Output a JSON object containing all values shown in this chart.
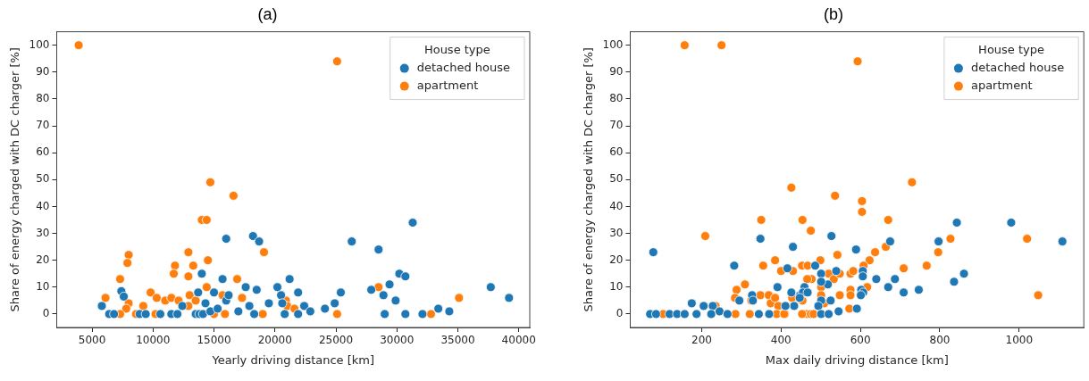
{
  "chart_data": [
    {
      "type": "scatter",
      "title": "(a)",
      "xlabel": "Yearly driving distance [km]",
      "ylabel": "Share of energy charged with DC charger [%]",
      "legend_title": "House type",
      "legend": "top right",
      "marker": "circle",
      "grid": false,
      "xlim": [
        2100,
        40900
      ],
      "ylim": [
        -5,
        105
      ],
      "xticks": [
        5000,
        10000,
        15000,
        20000,
        25000,
        30000,
        35000,
        40000
      ],
      "yticks": [
        0,
        10,
        20,
        30,
        40,
        50,
        60,
        70,
        80,
        90,
        100
      ],
      "series": [
        {
          "name": "detached house",
          "color": "#1f77b4",
          "x": [
            5800,
            6400,
            6800,
            7400,
            7600,
            8900,
            9400,
            10600,
            11500,
            12000,
            12400,
            13500,
            13800,
            14100,
            13700,
            14000,
            14300,
            14700,
            15000,
            15300,
            15700,
            16000,
            16200,
            16000,
            17000,
            17600,
            17900,
            18300,
            18200,
            18700,
            18500,
            19500,
            20200,
            20500,
            20600,
            20800,
            21200,
            21900,
            21900,
            22400,
            22900,
            24100,
            24900,
            25400,
            26300,
            27900,
            28500,
            28900,
            29000,
            29400,
            29900,
            30200,
            30700,
            30700,
            31300,
            32100,
            33400,
            34300,
            37700,
            39200
          ],
          "values": [
            3,
            0,
            0,
            8.5,
            6.5,
            0,
            0,
            0,
            0,
            0,
            3,
            0,
            0,
            0,
            8,
            15,
            4,
            1,
            8,
            2,
            13,
            5,
            7,
            28,
            1,
            10,
            3,
            0,
            29,
            27,
            9,
            4,
            10,
            7,
            4,
            0,
            13,
            0,
            8,
            3,
            1,
            2,
            4,
            8,
            27,
            9,
            24,
            7,
            0,
            11,
            5,
            15,
            14,
            0,
            34,
            0,
            2,
            1,
            10,
            6
          ]
        },
        {
          "name": "apartment",
          "color": "#ff7f0e",
          "x": [
            3900,
            6100,
            7300,
            8000,
            7900,
            8000,
            7800,
            7300,
            9200,
            8600,
            9800,
            10300,
            10200,
            11000,
            11500,
            11800,
            11700,
            12100,
            12900,
            12900,
            13000,
            12900,
            13300,
            13500,
            14000,
            14400,
            14400,
            14500,
            14700,
            15000,
            15700,
            15900,
            16600,
            16900,
            17300,
            19000,
            19100,
            20900,
            21000,
            21600,
            25100,
            25100,
            28500,
            32800,
            35100
          ],
          "values": [
            100,
            6,
            13,
            22,
            19,
            4,
            2,
            0,
            3,
            0,
            8,
            6,
            0,
            5,
            6,
            18,
            15,
            5,
            23,
            14,
            7,
            3,
            18,
            5,
            35,
            35,
            10,
            20,
            49,
            0,
            7,
            0,
            44,
            13,
            6,
            0,
            23,
            5,
            3,
            2,
            94,
            0,
            10,
            0,
            6
          ]
        }
      ]
    },
    {
      "type": "scatter",
      "title": "(b)",
      "xlabel": "Max daily driving distance [km]",
      "ylabel": "Share of energy charged with DC charger [%]",
      "legend_title": "House type",
      "legend": "top right",
      "marker": "circle",
      "grid": false,
      "xlim": [
        20,
        1163
      ],
      "ylim": [
        -5,
        105
      ],
      "xticks": [
        200,
        400,
        600,
        800,
        1000
      ],
      "yticks": [
        0,
        10,
        20,
        30,
        40,
        50,
        60,
        70,
        80,
        90,
        100
      ],
      "series": [
        {
          "name": "detached house",
          "color": "#1f77b4",
          "x": [
            78,
            70,
            85,
            119,
            138,
            157,
            175,
            187,
            205,
            228,
            224,
            245,
            265,
            282,
            295,
            327,
            329,
            344,
            348,
            370,
            391,
            416,
            430,
            426,
            433,
            411,
            448,
            459,
            527,
            589,
            675,
            797,
            843,
            980,
            1109,
            486,
            539,
            501,
            606,
            606,
            518,
            501,
            640,
            687,
            670,
            602,
            607,
            601,
            709,
            747,
            836,
            861,
            455,
            467,
            447,
            501,
            525,
            494,
            501,
            520,
            545,
            591
          ],
          "values": [
            23,
            0,
            0,
            0,
            0,
            0,
            4,
            0,
            3,
            3,
            0,
            1,
            0,
            18,
            5,
            7,
            5,
            0,
            28,
            0,
            10,
            17,
            25,
            8,
            3,
            3,
            7,
            10,
            29,
            24,
            27,
            27,
            34,
            34,
            27,
            18,
            16,
            15,
            16,
            14,
            11,
            12,
            13,
            13,
            10,
            9,
            8,
            7,
            8,
            9,
            12,
            15,
            8,
            8,
            6,
            5,
            5,
            3,
            0,
            0,
            1,
            2
          ]
        },
        {
          "name": "apartment",
          "color": "#ff7f0e",
          "x": [
            157,
            250,
            209,
            103,
            235,
            288,
            284,
            309,
            285,
            321,
            325,
            350,
            355,
            348,
            369,
            374,
            385,
            400,
            385,
            393,
            389,
            410,
            426,
            430,
            428,
            454,
            453,
            454,
            464,
            593,
            730,
            536,
            604,
            604,
            670,
            475,
            542,
            827,
            1020,
            796,
            767,
            709,
            637,
            623,
            608,
            664,
            467,
            499,
            477,
            466,
            520,
            533,
            548,
            575,
            582,
            501,
            617,
            575,
            575,
            548,
            501,
            509,
            408,
            453,
            475,
            482,
            572,
            1048
          ],
          "values": [
            100,
            100,
            29,
            0,
            3,
            9,
            6,
            11,
            0,
            0,
            5,
            35,
            18,
            7,
            7,
            4,
            20,
            16,
            6,
            3,
            0,
            0,
            47,
            16,
            6,
            35,
            18,
            5,
            0,
            94,
            49,
            44,
            42,
            38,
            35,
            31,
            22,
            28,
            28,
            23,
            18,
            17,
            23,
            20,
            18,
            25,
            18,
            20,
            13,
            13,
            15,
            13,
            15,
            15,
            16,
            10,
            10,
            9,
            7,
            7,
            7,
            4,
            0,
            0,
            0,
            0,
            2,
            7
          ]
        }
      ]
    }
  ]
}
